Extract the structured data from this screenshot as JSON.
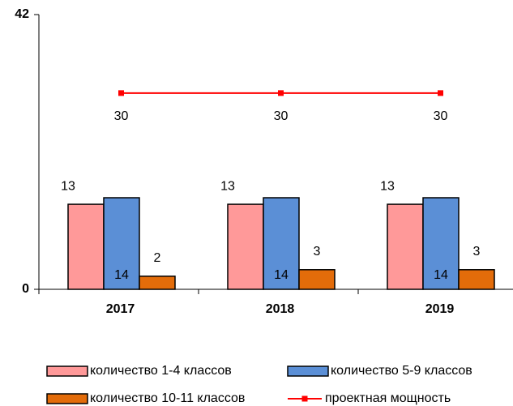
{
  "chart_data": {
    "type": "bar",
    "categories": [
      "2017",
      "2018",
      "2019"
    ],
    "series": [
      {
        "name": "количество 1-4 классов",
        "color": "#ff9999",
        "values": [
          13,
          13,
          13
        ]
      },
      {
        "name": "количество 5-9 классов",
        "color": "#5b8fd6",
        "values": [
          14,
          14,
          14
        ]
      },
      {
        "name": "количество 10-11 классов",
        "color": "#e36c0a",
        "values": [
          2,
          3,
          3
        ]
      },
      {
        "name": "проектная мощность",
        "color": "#ff0000",
        "type": "line",
        "values": [
          30,
          30,
          30
        ]
      }
    ],
    "ylim": [
      0,
      42
    ],
    "yticks": [
      0,
      42
    ],
    "grid": false
  }
}
